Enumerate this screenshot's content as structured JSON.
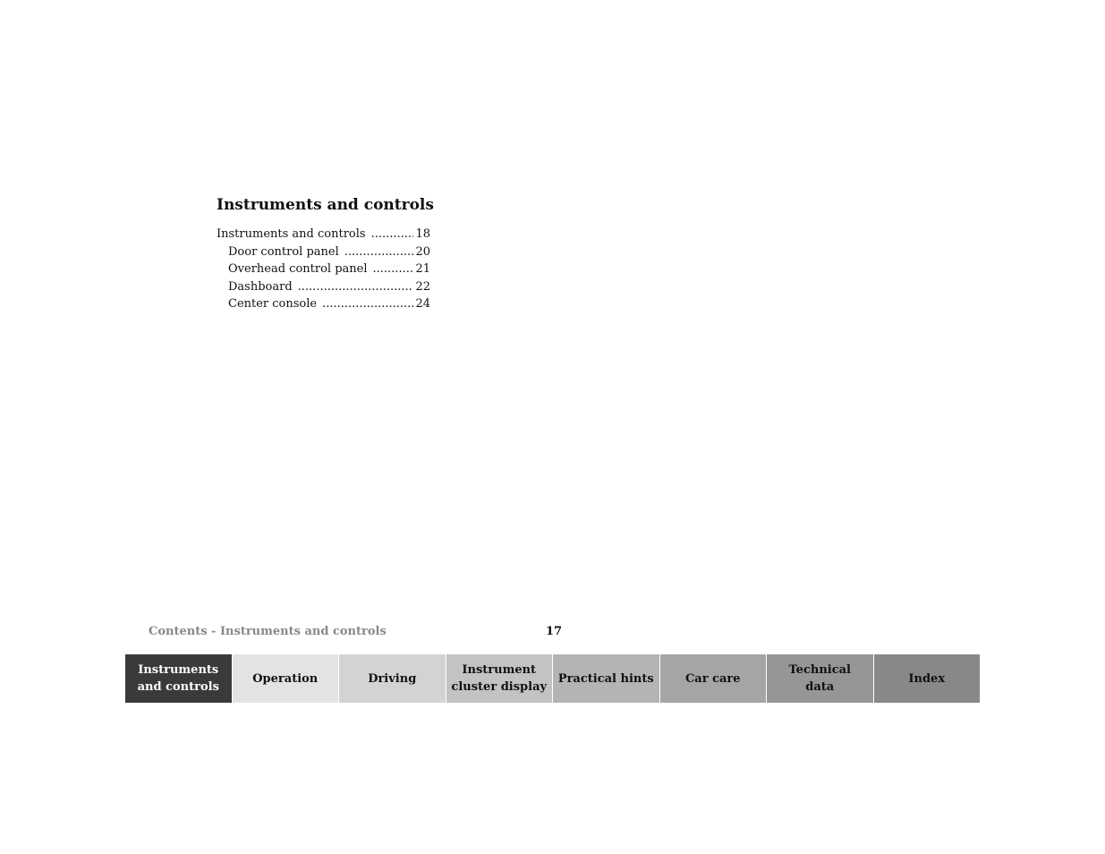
{
  "section": {
    "title": "Instruments and controls",
    "toc": [
      {
        "label": "Instruments and controls",
        "page": "18",
        "level": 0
      },
      {
        "label": "Door control panel",
        "page": "20",
        "level": 1
      },
      {
        "label": "Overhead control panel",
        "page": "21",
        "level": 1
      },
      {
        "label": "Dashboard",
        "page": "22",
        "level": 1
      },
      {
        "label": "Center console",
        "page": "24",
        "level": 1
      }
    ]
  },
  "footer": {
    "label": "Contents - Instruments and controls",
    "page_number": "17"
  },
  "tabs": [
    {
      "line1": "Instruments",
      "line2": "and controls",
      "color": "#3a3a3a",
      "active": true
    },
    {
      "line1": "Operation",
      "line2": "",
      "color": "#e3e3e3",
      "active": false
    },
    {
      "line1": "Driving",
      "line2": "",
      "color": "#d3d3d3",
      "active": false
    },
    {
      "line1": "Instrument",
      "line2": "cluster display",
      "color": "#c3c3c3",
      "active": false
    },
    {
      "line1": "Practical hints",
      "line2": "",
      "color": "#b4b4b4",
      "active": false
    },
    {
      "line1": "Car care",
      "line2": "",
      "color": "#a5a5a5",
      "active": false
    },
    {
      "line1": "Technical",
      "line2": "data",
      "color": "#969696",
      "active": false
    },
    {
      "line1": "Index",
      "line2": "",
      "color": "#888888",
      "active": false
    }
  ]
}
